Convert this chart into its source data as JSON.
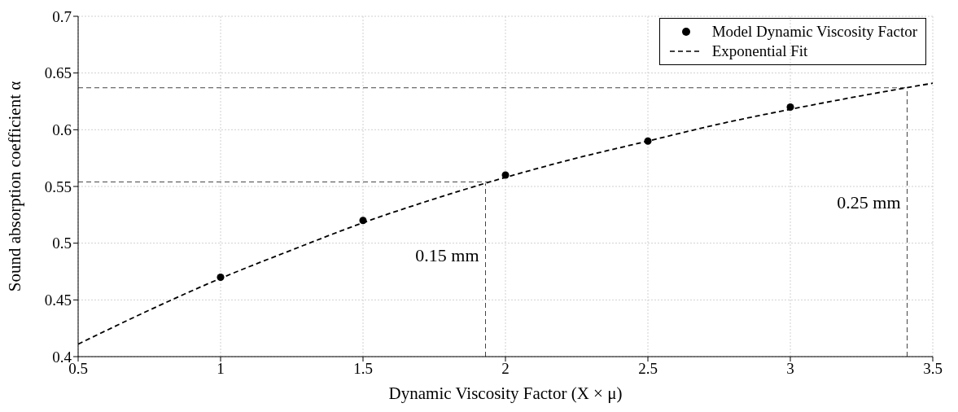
{
  "chart_data": {
    "type": "scatter",
    "xlabel": "Dynamic Viscosity Factor (X × μ)",
    "ylabel": "Sound absorption coefficient α",
    "xlim": [
      0.5,
      3.5
    ],
    "xticks": [
      0.5,
      1,
      1.5,
      2,
      2.5,
      3,
      3.5
    ],
    "ylim": [
      0.4,
      0.7
    ],
    "yticks": [
      0.4,
      0.45,
      0.5,
      0.55,
      0.6,
      0.65,
      0.7
    ],
    "grid": true,
    "legend": "top right",
    "series": [
      {
        "name": "Model Dynamic Viscosity Factor",
        "marker": "circle",
        "color": "#000000",
        "x": [
          1,
          1.5,
          2,
          2.5,
          3
        ],
        "values": [
          0.47,
          0.52,
          0.56,
          0.59,
          0.62
        ]
      },
      {
        "name": "Exponential Fit",
        "type": "line",
        "marker": "none",
        "line_style": "dashed",
        "color": "#000000",
        "x": [
          0.5,
          0.75,
          1,
          1.25,
          1.5,
          1.75,
          2,
          2.25,
          2.5,
          2.75,
          3,
          3.25,
          3.5
        ],
        "values": [
          0.411,
          0.441,
          0.469,
          0.494,
          0.518,
          0.539,
          0.558,
          0.575,
          0.59,
          0.605,
          0.618,
          0.63,
          0.641
        ]
      }
    ],
    "ref_lines": [
      {
        "axis": "x",
        "value": 1.93,
        "label": "0.15 mm",
        "color": "#444444",
        "line_style": "dashed"
      },
      {
        "axis": "y",
        "value": 0.554,
        "color": "#444444",
        "line_style": "dashed"
      },
      {
        "axis": "x",
        "value": 3.41,
        "label": "0.25 mm",
        "color": "#444444",
        "line_style": "dashed"
      },
      {
        "axis": "y",
        "value": 0.637,
        "color": "#444444",
        "line_style": "dashed"
      }
    ]
  }
}
